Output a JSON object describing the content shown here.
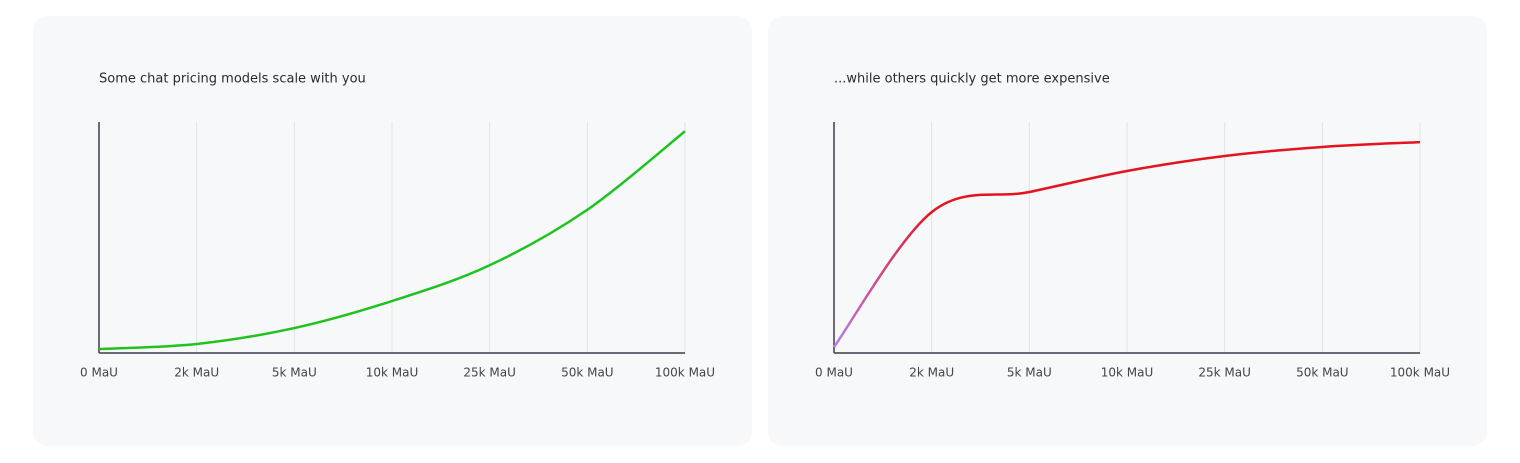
{
  "chart_data": [
    {
      "type": "line",
      "title": "Some chat pricing models scale with you",
      "categories": [
        "0 MaU",
        "2k MaU",
        "5k MaU",
        "10k MaU",
        "25k MaU",
        "50k MaU",
        "100k MaU"
      ],
      "ylim": [
        0,
        100
      ],
      "grid": true,
      "series": [
        {
          "color": "#1ec31e",
          "values": [
            1.7,
            3.9,
            10.8,
            22.5,
            38,
            62,
            96
          ]
        }
      ]
    },
    {
      "type": "line",
      "title": "...while others quickly get more expensive",
      "categories": [
        "0 MaU",
        "2k MaU",
        "5k MaU",
        "10k MaU",
        "25k MaU",
        "50k MaU",
        "100k MaU"
      ],
      "ylim": [
        0,
        100
      ],
      "grid": true,
      "series": [
        {
          "color": "#e3141e",
          "start_color": "#b57fe6",
          "values": [
            2.6,
            61,
            69.7,
            78.8,
            85.3,
            89.2,
            91.3
          ]
        }
      ]
    }
  ]
}
